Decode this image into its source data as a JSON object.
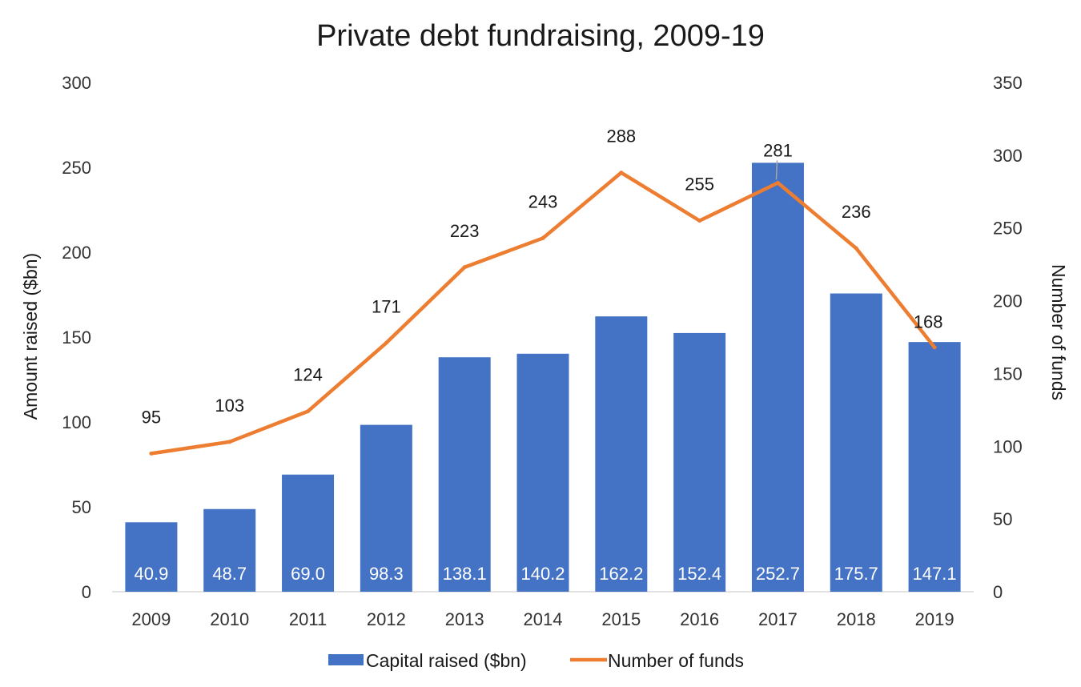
{
  "chart_data": {
    "type": "bar",
    "title": "Private debt fundraising, 2009-19",
    "categories": [
      "2009",
      "2010",
      "2011",
      "2012",
      "2013",
      "2014",
      "2015",
      "2016",
      "2017",
      "2018",
      "2019"
    ],
    "series": [
      {
        "name": "Capital raised ($bn)",
        "type": "bar",
        "axis": "left",
        "color": "#4472C4",
        "values": [
          40.9,
          48.7,
          69.0,
          98.3,
          138.1,
          140.2,
          162.2,
          152.4,
          252.7,
          175.7,
          147.1
        ],
        "labels": [
          "40.9",
          "48.7",
          "69.0",
          "98.3",
          "138.1",
          "140.2",
          "162.2",
          "152.4",
          "252.7",
          "175.7",
          "147.1"
        ]
      },
      {
        "name": "Number of funds",
        "type": "line",
        "axis": "right",
        "color": "#ED7D31",
        "values": [
          95,
          103,
          124,
          171,
          223,
          243,
          288,
          255,
          281,
          236,
          168
        ],
        "labels": [
          "95",
          "103",
          "124",
          "171",
          "223",
          "243",
          "288",
          "255",
          "281",
          "236",
          "168"
        ]
      }
    ],
    "ylabel": "Amount raised ($bn)",
    "y2label": "Number of funds",
    "ylim": [
      0,
      300
    ],
    "yticks": [
      "0",
      "50",
      "100",
      "150",
      "200",
      "250",
      "300"
    ],
    "y2lim": [
      0,
      350
    ],
    "y2ticks": [
      "0",
      "50",
      "100",
      "150",
      "200",
      "250",
      "300",
      "350"
    ],
    "grid": false,
    "legend_position": "bottom"
  }
}
